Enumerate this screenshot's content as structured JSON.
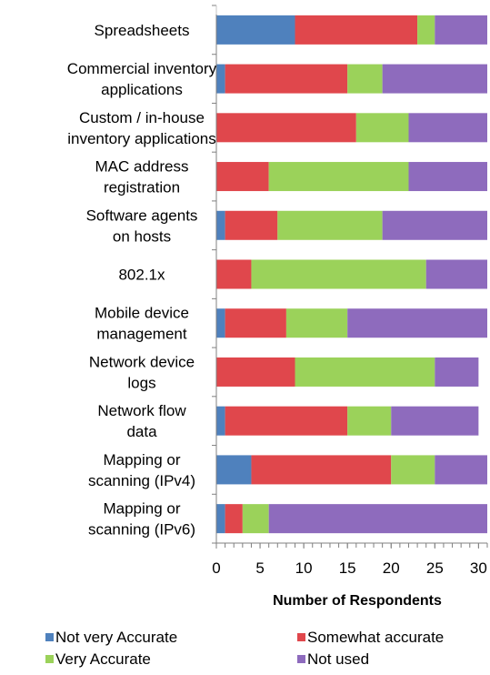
{
  "chart_data": {
    "type": "bar",
    "orientation": "horizontal",
    "stacked": true,
    "categories": [
      [
        "Spreadsheets"
      ],
      [
        "Commercial inventory",
        "applications"
      ],
      [
        "Custom / in-house",
        "inventory applications"
      ],
      [
        "MAC address",
        "registration"
      ],
      [
        "Software agents",
        "on hosts"
      ],
      [
        "802.1x"
      ],
      [
        "Mobile device",
        "management"
      ],
      [
        "Network device",
        "logs"
      ],
      [
        "Network flow",
        "data"
      ],
      [
        "Mapping or",
        "scanning (IPv4)"
      ],
      [
        "Mapping or",
        "scanning (IPv6)"
      ]
    ],
    "series": [
      {
        "name": "Not very Accurate",
        "color": "#4f81bd",
        "values": [
          9,
          1,
          0,
          0,
          1,
          0,
          1,
          0,
          1,
          4,
          1
        ]
      },
      {
        "name": "Somewhat accurate",
        "color": "#e0474c",
        "values": [
          14,
          14,
          16,
          6,
          6,
          4,
          7,
          9,
          14,
          16,
          2
        ]
      },
      {
        "name": "Very Accurate",
        "color": "#9bd25a",
        "values": [
          2,
          4,
          6,
          16,
          12,
          20,
          7,
          16,
          5,
          5,
          3
        ]
      },
      {
        "name": "Not used",
        "color": "#8e6bbd",
        "values": [
          6,
          12,
          9,
          9,
          12,
          7,
          16,
          5,
          10,
          6,
          25
        ]
      }
    ],
    "xlabel": "Number of Respondents",
    "ylabel": "",
    "xlim": [
      0,
      31
    ],
    "xticks": [
      "0",
      "5",
      "10",
      "15",
      "20",
      "25",
      "30"
    ],
    "grid": false,
    "legend_position": "bottom"
  }
}
